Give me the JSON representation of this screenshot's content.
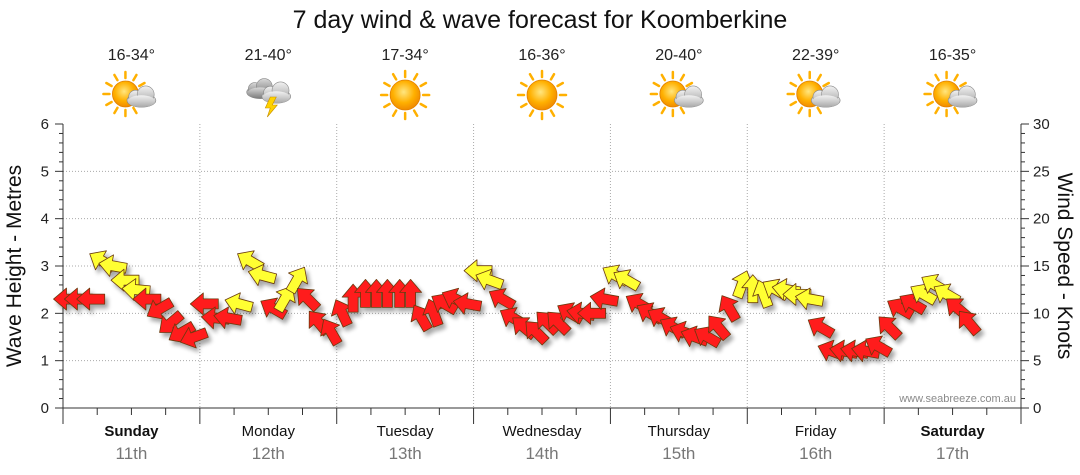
{
  "chart_data": {
    "type": "scatter",
    "title": "7 day wind & wave forecast for Koomberkine",
    "ylabel_left": "Wave Height - Metres",
    "ylabel_right": "Wind Speed - Knots",
    "y_left": {
      "range": [
        0,
        6
      ],
      "ticks": [
        "0",
        "1",
        "2",
        "3",
        "4",
        "5",
        "6"
      ]
    },
    "y_right": {
      "range": [
        0,
        30
      ],
      "ticks": [
        "0",
        "5",
        "10",
        "15",
        "20",
        "25",
        "30"
      ]
    },
    "watermark": "www.seabreeze.com.au",
    "days": [
      {
        "name": "Sunday",
        "date": "11th",
        "temp": "16-34°",
        "icon": "partly-cloudy-icon",
        "bold": true
      },
      {
        "name": "Monday",
        "date": "12th",
        "temp": "21-40°",
        "icon": "storm-icon",
        "bold": false
      },
      {
        "name": "Tuesday",
        "date": "13th",
        "temp": "17-34°",
        "icon": "sun-icon",
        "bold": false
      },
      {
        "name": "Wednesday",
        "date": "14th",
        "temp": "16-36°",
        "icon": "sun-icon",
        "bold": false
      },
      {
        "name": "Thursday",
        "date": "15th",
        "temp": "20-40°",
        "icon": "partly-cloudy-icon",
        "bold": false
      },
      {
        "name": "Friday",
        "date": "16th",
        "temp": "22-39°",
        "icon": "partly-cloudy-icon",
        "bold": false
      },
      {
        "name": "Saturday",
        "date": "17th",
        "temp": "16-35°",
        "icon": "partly-cloudy-icon",
        "bold": true
      }
    ],
    "series": [
      {
        "name": "Wind",
        "units": "knots",
        "note": "arrows point in wind travel direction (degrees, 0 = toward top); red = stronger, yellow = lighter",
        "points": [
          {
            "t": 0.0,
            "kn": 11.5,
            "dir": 270,
            "color": "red"
          },
          {
            "t": 0.08,
            "kn": 11.5,
            "dir": 270,
            "color": "red"
          },
          {
            "t": 0.17,
            "kn": 11.5,
            "dir": 270,
            "color": "red"
          },
          {
            "t": 0.25,
            "kn": 15.5,
            "dir": 300,
            "color": "yellow"
          },
          {
            "t": 0.33,
            "kn": 15.0,
            "dir": 280,
            "color": "yellow"
          },
          {
            "t": 0.42,
            "kn": 13.5,
            "dir": 270,
            "color": "yellow"
          },
          {
            "t": 0.5,
            "kn": 12.5,
            "dir": 275,
            "color": "yellow"
          },
          {
            "t": 0.58,
            "kn": 11.5,
            "dir": 270,
            "color": "red"
          },
          {
            "t": 0.67,
            "kn": 10.5,
            "dir": 240,
            "color": "red"
          },
          {
            "t": 0.75,
            "kn": 9.0,
            "dir": 230,
            "color": "red"
          },
          {
            "t": 0.83,
            "kn": 8.0,
            "dir": 240,
            "color": "red"
          },
          {
            "t": 0.92,
            "kn": 7.5,
            "dir": 250,
            "color": "red"
          },
          {
            "t": 1.0,
            "kn": 11.0,
            "dir": 270,
            "color": "red"
          },
          {
            "t": 1.08,
            "kn": 9.5,
            "dir": 275,
            "color": "red"
          },
          {
            "t": 1.17,
            "kn": 9.5,
            "dir": 280,
            "color": "red"
          },
          {
            "t": 1.25,
            "kn": 11.0,
            "dir": 285,
            "color": "yellow"
          },
          {
            "t": 1.33,
            "kn": 15.5,
            "dir": 300,
            "color": "yellow"
          },
          {
            "t": 1.42,
            "kn": 14.0,
            "dir": 285,
            "color": "yellow"
          },
          {
            "t": 1.5,
            "kn": 10.5,
            "dir": 300,
            "color": "red"
          },
          {
            "t": 1.58,
            "kn": 11.5,
            "dir": 30,
            "color": "yellow"
          },
          {
            "t": 1.67,
            "kn": 13.5,
            "dir": 30,
            "color": "yellow"
          },
          {
            "t": 1.75,
            "kn": 11.5,
            "dir": 315,
            "color": "red"
          },
          {
            "t": 1.83,
            "kn": 9.0,
            "dir": 320,
            "color": "red"
          },
          {
            "t": 1.92,
            "kn": 8.0,
            "dir": 330,
            "color": "red"
          },
          {
            "t": 2.0,
            "kn": 10.0,
            "dir": 335,
            "color": "red"
          },
          {
            "t": 2.08,
            "kn": 11.5,
            "dir": 0,
            "color": "red"
          },
          {
            "t": 2.17,
            "kn": 12.0,
            "dir": 0,
            "color": "red"
          },
          {
            "t": 2.25,
            "kn": 12.0,
            "dir": 0,
            "color": "red"
          },
          {
            "t": 2.33,
            "kn": 12.0,
            "dir": 0,
            "color": "red"
          },
          {
            "t": 2.42,
            "kn": 12.0,
            "dir": 0,
            "color": "red"
          },
          {
            "t": 2.5,
            "kn": 12.0,
            "dir": 0,
            "color": "red"
          },
          {
            "t": 2.58,
            "kn": 9.5,
            "dir": 330,
            "color": "red"
          },
          {
            "t": 2.67,
            "kn": 10.0,
            "dir": 340,
            "color": "red"
          },
          {
            "t": 2.75,
            "kn": 11.0,
            "dir": 300,
            "color": "red"
          },
          {
            "t": 2.83,
            "kn": 11.5,
            "dir": 295,
            "color": "red"
          },
          {
            "t": 2.92,
            "kn": 11.0,
            "dir": 280,
            "color": "red"
          },
          {
            "t": 3.0,
            "kn": 14.5,
            "dir": 270,
            "color": "yellow"
          },
          {
            "t": 3.08,
            "kn": 13.5,
            "dir": 290,
            "color": "yellow"
          },
          {
            "t": 3.17,
            "kn": 11.5,
            "dir": 300,
            "color": "red"
          },
          {
            "t": 3.25,
            "kn": 9.5,
            "dir": 300,
            "color": "red"
          },
          {
            "t": 3.33,
            "kn": 8.5,
            "dir": 310,
            "color": "red"
          },
          {
            "t": 3.42,
            "kn": 8.0,
            "dir": 315,
            "color": "red"
          },
          {
            "t": 3.5,
            "kn": 9.0,
            "dir": 315,
            "color": "red"
          },
          {
            "t": 3.58,
            "kn": 9.0,
            "dir": 315,
            "color": "red"
          },
          {
            "t": 3.67,
            "kn": 10.0,
            "dir": 300,
            "color": "red"
          },
          {
            "t": 3.75,
            "kn": 10.0,
            "dir": 280,
            "color": "red"
          },
          {
            "t": 3.83,
            "kn": 10.0,
            "dir": 270,
            "color": "red"
          },
          {
            "t": 3.92,
            "kn": 11.5,
            "dir": 280,
            "color": "red"
          },
          {
            "t": 4.0,
            "kn": 14.0,
            "dir": 300,
            "color": "yellow"
          },
          {
            "t": 4.08,
            "kn": 13.5,
            "dir": 300,
            "color": "yellow"
          },
          {
            "t": 4.17,
            "kn": 11.0,
            "dir": 300,
            "color": "red"
          },
          {
            "t": 4.25,
            "kn": 10.0,
            "dir": 300,
            "color": "red"
          },
          {
            "t": 4.33,
            "kn": 9.5,
            "dir": 300,
            "color": "red"
          },
          {
            "t": 4.42,
            "kn": 8.5,
            "dir": 300,
            "color": "red"
          },
          {
            "t": 4.5,
            "kn": 8.0,
            "dir": 290,
            "color": "red"
          },
          {
            "t": 4.58,
            "kn": 7.5,
            "dir": 290,
            "color": "red"
          },
          {
            "t": 4.67,
            "kn": 7.5,
            "dir": 300,
            "color": "red"
          },
          {
            "t": 4.75,
            "kn": 8.5,
            "dir": 320,
            "color": "red"
          },
          {
            "t": 4.83,
            "kn": 10.5,
            "dir": 330,
            "color": "red"
          },
          {
            "t": 4.92,
            "kn": 13.0,
            "dir": 20,
            "color": "yellow"
          },
          {
            "t": 5.0,
            "kn": 12.5,
            "dir": 0,
            "color": "yellow"
          },
          {
            "t": 5.08,
            "kn": 12.0,
            "dir": 340,
            "color": "yellow"
          },
          {
            "t": 5.17,
            "kn": 12.5,
            "dir": 300,
            "color": "yellow"
          },
          {
            "t": 5.25,
            "kn": 12.5,
            "dir": 280,
            "color": "yellow"
          },
          {
            "t": 5.33,
            "kn": 12.0,
            "dir": 270,
            "color": "yellow"
          },
          {
            "t": 5.42,
            "kn": 11.5,
            "dir": 280,
            "color": "yellow"
          },
          {
            "t": 5.5,
            "kn": 8.5,
            "dir": 300,
            "color": "red"
          },
          {
            "t": 5.58,
            "kn": 6.0,
            "dir": 290,
            "color": "red"
          },
          {
            "t": 5.67,
            "kn": 6.0,
            "dir": 280,
            "color": "red"
          },
          {
            "t": 5.75,
            "kn": 6.0,
            "dir": 280,
            "color": "red"
          },
          {
            "t": 5.83,
            "kn": 6.0,
            "dir": 280,
            "color": "red"
          },
          {
            "t": 5.92,
            "kn": 6.5,
            "dir": 300,
            "color": "red"
          },
          {
            "t": 6.0,
            "kn": 8.5,
            "dir": 315,
            "color": "red"
          },
          {
            "t": 6.08,
            "kn": 10.5,
            "dir": 300,
            "color": "red"
          },
          {
            "t": 6.17,
            "kn": 11.0,
            "dir": 300,
            "color": "red"
          },
          {
            "t": 6.25,
            "kn": 12.0,
            "dir": 300,
            "color": "yellow"
          },
          {
            "t": 6.33,
            "kn": 13.0,
            "dir": 300,
            "color": "yellow"
          },
          {
            "t": 6.42,
            "kn": 12.0,
            "dir": 300,
            "color": "yellow"
          },
          {
            "t": 6.5,
            "kn": 10.5,
            "dir": 310,
            "color": "red"
          },
          {
            "t": 6.58,
            "kn": 9.0,
            "dir": 320,
            "color": "red"
          }
        ]
      }
    ]
  },
  "colors": {
    "strong_wind": "#ff1a1a",
    "light_wind": "#ffff33",
    "grid": "#aaaaaa",
    "day_date": "#777777"
  }
}
